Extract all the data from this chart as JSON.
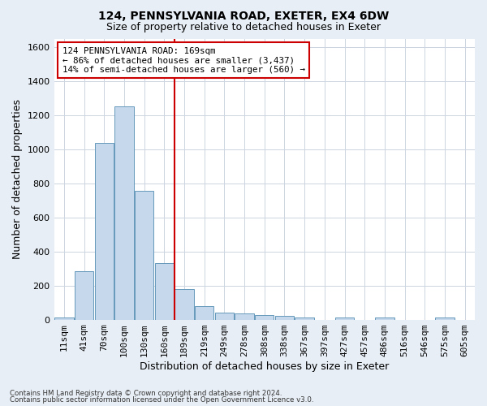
{
  "title1": "124, PENNSYLVANIA ROAD, EXETER, EX4 6DW",
  "title2": "Size of property relative to detached houses in Exeter",
  "xlabel": "Distribution of detached houses by size in Exeter",
  "ylabel": "Number of detached properties",
  "footer1": "Contains HM Land Registry data © Crown copyright and database right 2024.",
  "footer2": "Contains public sector information licensed under the Open Government Licence v3.0.",
  "bin_labels": [
    "11sqm",
    "41sqm",
    "70sqm",
    "100sqm",
    "130sqm",
    "160sqm",
    "189sqm",
    "219sqm",
    "249sqm",
    "278sqm",
    "308sqm",
    "338sqm",
    "367sqm",
    "397sqm",
    "427sqm",
    "457sqm",
    "486sqm",
    "516sqm",
    "546sqm",
    "575sqm",
    "605sqm"
  ],
  "bar_values": [
    10,
    285,
    1035,
    1250,
    755,
    330,
    180,
    80,
    43,
    38,
    28,
    20,
    10,
    0,
    12,
    0,
    10,
    0,
    0,
    12,
    0
  ],
  "bar_color": "#c5d8ec",
  "bar_edge_color": "#6699bb",
  "vline_color": "#cc0000",
  "vline_bin_index": 5,
  "annotation_text": "124 PENNSYLVANIA ROAD: 169sqm\n← 86% of detached houses are smaller (3,437)\n14% of semi-detached houses are larger (560) →",
  "annotation_box_color": "#ffffff",
  "annotation_box_edge": "#cc0000",
  "ylim": [
    0,
    1650
  ],
  "yticks": [
    0,
    200,
    400,
    600,
    800,
    1000,
    1200,
    1400,
    1600
  ],
  "grid_color": "#ccd5e0",
  "plot_bg_color": "#ffffff",
  "outer_bg_color": "#e8eef5",
  "title1_fontsize": 10,
  "title2_fontsize": 9,
  "ylabel_fontsize": 9,
  "xlabel_fontsize": 9,
  "tick_fontsize": 8,
  "annotation_fontsize": 7.8
}
